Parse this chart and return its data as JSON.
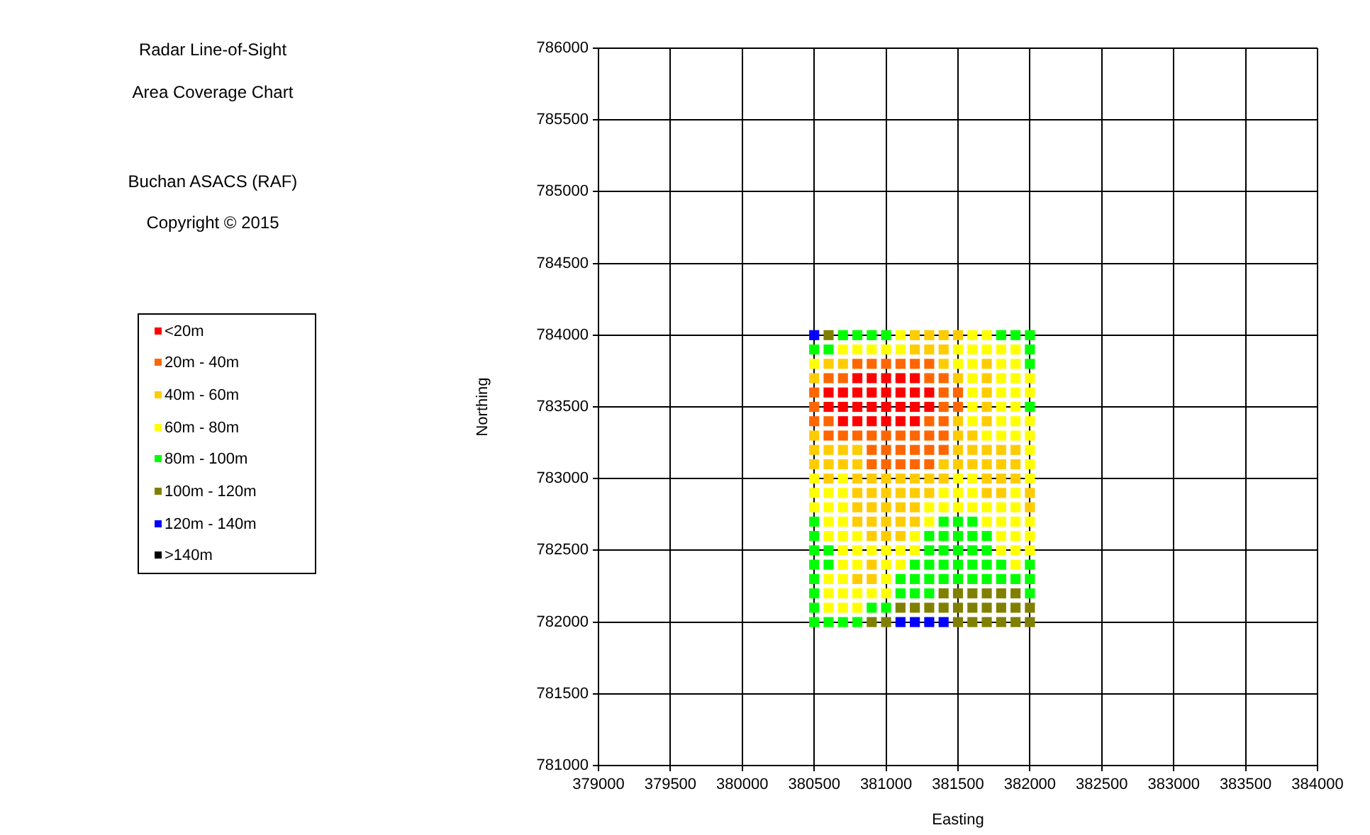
{
  "chart_data": {
    "type": "scatter",
    "title": "Radar Line-of-Sight",
    "subtitle": "Area Coverage Chart",
    "annotations": [
      "Buchan ASACS (RAF)",
      "Copyright © 2015"
    ],
    "xlabel": "Easting",
    "ylabel": "Northing",
    "xlim": [
      379000,
      384000
    ],
    "xticks": [
      379000,
      379500,
      380000,
      380500,
      381000,
      381500,
      382000,
      382500,
      383000,
      383500,
      384000
    ],
    "ylim": [
      781000,
      786000
    ],
    "yticks": [
      781000,
      781500,
      782000,
      782500,
      783000,
      783500,
      784000,
      784500,
      785000,
      785500,
      786000
    ],
    "grid": true,
    "legend": "left",
    "marker": "square",
    "series": [
      {
        "name": "<20m",
        "color": "#ff0000",
        "x": [
          380800,
          380900,
          381000,
          381100,
          381200,
          380600,
          380700,
          380800,
          380900,
          381000,
          381100,
          381200,
          381300,
          380600,
          380700,
          380800,
          380900,
          381000,
          381100,
          381200,
          381300,
          380700,
          380800,
          380900,
          381000,
          381100,
          381200
        ],
        "values": [
          783700,
          783700,
          783700,
          783700,
          783700,
          783600,
          783600,
          783600,
          783600,
          783600,
          783600,
          783600,
          783600,
          783500,
          783500,
          783500,
          783500,
          783500,
          783500,
          783500,
          783500,
          783400,
          783400,
          783400,
          783400,
          783400,
          783400
        ]
      },
      {
        "name": "20m - 40m",
        "color": "#ff6600",
        "x": [
          380800,
          380900,
          381000,
          381100,
          381200,
          381300,
          380600,
          380700,
          381300,
          381400,
          380500,
          381400,
          381500,
          380500,
          381400,
          381500,
          380500,
          380600,
          381300,
          381400,
          380600,
          380700,
          380800,
          380900,
          381000,
          381100,
          381200,
          381300,
          381400,
          380900,
          381000,
          381100,
          381200,
          381300,
          381400,
          380900,
          381000,
          381100,
          381200,
          381300
        ],
        "values": [
          783800,
          783800,
          783800,
          783800,
          783800,
          783800,
          783700,
          783700,
          783700,
          783700,
          783600,
          783600,
          783600,
          783500,
          783500,
          783500,
          783400,
          783400,
          783400,
          783400,
          783300,
          783300,
          783300,
          783300,
          783300,
          783300,
          783300,
          783300,
          783300,
          783200,
          783200,
          783200,
          783200,
          783200,
          783200,
          783100,
          783100,
          783100,
          783100,
          783100
        ]
      },
      {
        "name": "40m - 60m",
        "color": "#ffcc00",
        "x": [
          381200,
          381300,
          381400,
          381500,
          381200,
          381300,
          381400,
          380600,
          380700,
          381400,
          381700,
          380500,
          381500,
          381700,
          381700,
          381700,
          381500,
          381700,
          380500,
          381500,
          381600,
          380500,
          380600,
          380700,
          380800,
          381500,
          381600,
          381700,
          381800,
          381900,
          380500,
          380600,
          380700,
          380800,
          381400,
          381500,
          381600,
          381700,
          381800,
          381900,
          380600,
          380800,
          380900,
          381000,
          381100,
          381200,
          381300,
          381400,
          381700,
          381800,
          381900,
          380800,
          380900,
          381000,
          381100,
          381200,
          381300,
          381700,
          381800,
          382000,
          380800,
          380900,
          381000,
          381100,
          381200,
          382000,
          380800,
          380900,
          381000,
          381100,
          381200,
          380900,
          381000,
          381100,
          380900,
          380800,
          380900
        ],
        "values": [
          784000,
          784000,
          784000,
          784000,
          783900,
          783900,
          783900,
          783800,
          783800,
          783800,
          783800,
          783700,
          783700,
          783700,
          783600,
          783500,
          783400,
          783400,
          783300,
          783300,
          783300,
          783200,
          783200,
          783200,
          783200,
          783200,
          783200,
          783200,
          783200,
          783200,
          783100,
          783100,
          783100,
          783100,
          783100,
          783100,
          783100,
          783100,
          783100,
          783100,
          783000,
          783000,
          783000,
          783000,
          783000,
          783000,
          783000,
          783000,
          783000,
          783000,
          783000,
          782900,
          782900,
          782900,
          782900,
          782900,
          782900,
          782900,
          782900,
          782900,
          782800,
          782800,
          782800,
          782800,
          782800,
          782800,
          782700,
          782700,
          782700,
          782700,
          782700,
          782600,
          782600,
          782600,
          782400,
          782300,
          782300
        ]
      },
      {
        "name": "60m - 80m",
        "color": "#ffff00",
        "x": [
          381100,
          381600,
          381700,
          380700,
          380800,
          380900,
          381000,
          381100,
          381500,
          381600,
          381700,
          381800,
          381900,
          380500,
          381500,
          381600,
          381800,
          381900,
          381600,
          381800,
          381900,
          382000,
          381600,
          381800,
          381900,
          382000,
          381600,
          381800,
          381900,
          381600,
          381800,
          381900,
          382000,
          381700,
          381800,
          381900,
          382000,
          382000,
          382000,
          380500,
          380700,
          381500,
          381600,
          382000,
          380500,
          380600,
          380700,
          381400,
          381500,
          381600,
          381900,
          380500,
          380600,
          380700,
          381300,
          381400,
          381500,
          381600,
          381700,
          381800,
          381900,
          380600,
          380700,
          381300,
          381700,
          381800,
          381900,
          382000,
          380600,
          380700,
          380800,
          381200,
          381800,
          381900,
          382000,
          380700,
          380800,
          380900,
          381000,
          381100,
          381200,
          381800,
          381900,
          382000,
          380700,
          380800,
          381000,
          381100,
          381900,
          380600,
          380700,
          381000,
          380600,
          380700,
          380800,
          380900,
          381000,
          380600,
          380700,
          380800
        ],
        "values": [
          784000,
          784000,
          784000,
          783900,
          783900,
          783900,
          783900,
          783900,
          783900,
          783900,
          783900,
          783900,
          783900,
          783800,
          783800,
          783800,
          783800,
          783800,
          783700,
          783700,
          783700,
          783700,
          783600,
          783600,
          783600,
          783600,
          783500,
          783500,
          783500,
          783400,
          783400,
          783400,
          783400,
          783300,
          783300,
          783300,
          783300,
          783200,
          783100,
          783000,
          783000,
          783000,
          783000,
          783000,
          782900,
          782900,
          782900,
          782900,
          782900,
          782900,
          782900,
          782800,
          782800,
          782800,
          782800,
          782800,
          782800,
          782800,
          782800,
          782800,
          782800,
          782700,
          782700,
          782700,
          782700,
          782700,
          782700,
          782700,
          782600,
          782600,
          782600,
          782600,
          782600,
          782600,
          782600,
          782500,
          782500,
          782500,
          782500,
          782500,
          782500,
          782500,
          782500,
          782500,
          782400,
          782400,
          782400,
          782400,
          782400,
          782300,
          782300,
          782300,
          782200,
          782200,
          782200,
          782200,
          782200,
          782100,
          782100,
          782100
        ]
      },
      {
        "name": "80m - 100m",
        "color": "#00ff00",
        "x": [
          380700,
          380800,
          380900,
          381000,
          381800,
          381900,
          382000,
          380500,
          380600,
          382000,
          382000,
          382000,
          380500,
          381400,
          381500,
          381600,
          380500,
          381300,
          381400,
          381500,
          381600,
          381700,
          380500,
          380600,
          381300,
          381400,
          381500,
          381600,
          381700,
          380500,
          380600,
          381200,
          381300,
          381400,
          381500,
          381600,
          381700,
          381800,
          382000,
          380500,
          381100,
          381200,
          381300,
          381400,
          381500,
          381600,
          381700,
          381800,
          381900,
          382000,
          380500,
          381100,
          381200,
          381300,
          382000,
          380500,
          380900,
          381000,
          380500,
          380600,
          380700,
          380800
        ],
        "values": [
          784000,
          784000,
          784000,
          784000,
          784000,
          784000,
          784000,
          783900,
          783900,
          783900,
          783800,
          783500,
          782700,
          782700,
          782700,
          782700,
          782600,
          782600,
          782600,
          782600,
          782600,
          782600,
          782500,
          782500,
          782500,
          782500,
          782500,
          782500,
          782500,
          782400,
          782400,
          782400,
          782400,
          782400,
          782400,
          782400,
          782400,
          782400,
          782400,
          782300,
          782300,
          782300,
          782300,
          782300,
          782300,
          782300,
          782300,
          782300,
          782300,
          782300,
          782200,
          782200,
          782200,
          782200,
          782200,
          782100,
          782100,
          782100,
          782000,
          782000,
          782000,
          782000
        ]
      },
      {
        "name": "100m - 120m",
        "color": "#808000",
        "x": [
          380600,
          381400,
          381500,
          381600,
          381700,
          381800,
          381900,
          381100,
          381200,
          381300,
          381400,
          381500,
          381600,
          381700,
          381800,
          381900,
          382000,
          380900,
          381000,
          381500,
          381600,
          381700,
          381800,
          381900,
          382000
        ],
        "values": [
          784000,
          782200,
          782200,
          782200,
          782200,
          782200,
          782200,
          782100,
          782100,
          782100,
          782100,
          782100,
          782100,
          782100,
          782100,
          782100,
          782100,
          782000,
          782000,
          782000,
          782000,
          782000,
          782000,
          782000,
          782000
        ]
      },
      {
        "name": "120m - 140m",
        "color": "#0000ff",
        "x": [
          380500,
          381100,
          381200,
          381300,
          381400
        ],
        "values": [
          784000,
          782000,
          782000,
          782000,
          782000
        ]
      },
      {
        "name": ">140m",
        "color": "#000000"
      }
    ]
  }
}
